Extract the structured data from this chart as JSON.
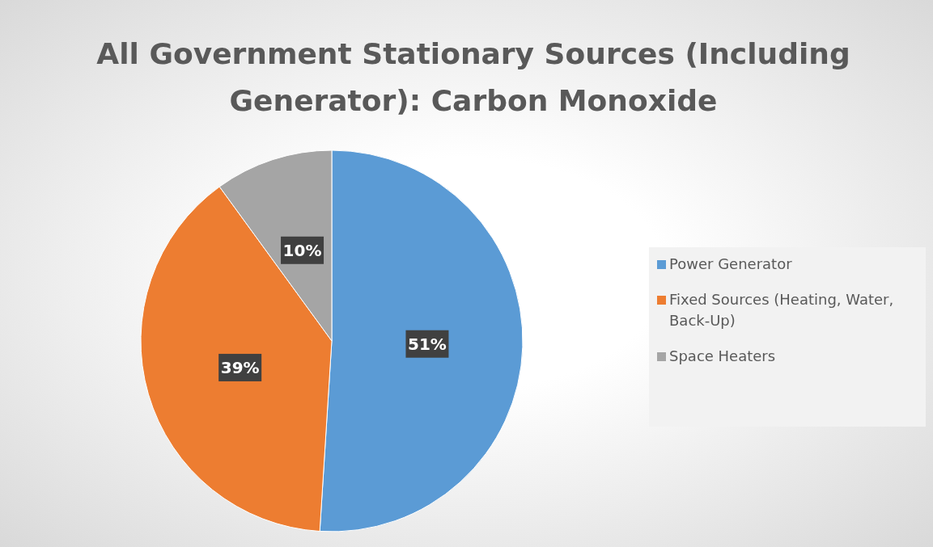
{
  "chart_data": {
    "type": "pie",
    "title": "All Government Stationary Sources (Including Generator): Carbon Monoxide",
    "categories": [
      "Power Generator",
      "Fixed Sources (Heating, Water, Back-Up)",
      "Space Heaters"
    ],
    "values": [
      51,
      39,
      10
    ],
    "value_labels": [
      "51%",
      "39%",
      "10%"
    ],
    "colors": [
      "#5b9bd5",
      "#ed7d31",
      "#a5a5a5"
    ],
    "legend": "right"
  }
}
